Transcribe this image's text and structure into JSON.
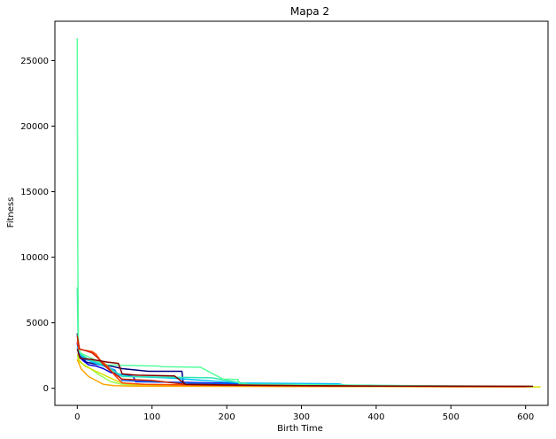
{
  "chart_data": {
    "type": "line",
    "title": "Mapa 2",
    "xlabel": "Birth Time",
    "ylabel": "Fitness",
    "xlim": [
      -30,
      630
    ],
    "ylim": [
      -1300,
      28000
    ],
    "xticks": [
      0,
      100,
      200,
      300,
      400,
      500,
      600
    ],
    "yticks": [
      0,
      5000,
      10000,
      15000,
      20000,
      25000
    ],
    "grid": false,
    "legend": "none",
    "series": [
      {
        "color": "#000080",
        "x": [
          0,
          2,
          5,
          12,
          20,
          30,
          45,
          60,
          95,
          140,
          142,
          200,
          260,
          380,
          500,
          605
        ],
        "y": [
          4200,
          2800,
          2400,
          2000,
          1900,
          1800,
          1700,
          1500,
          1300,
          1300,
          280,
          250,
          200,
          150,
          140,
          130
        ]
      },
      {
        "color": "#0000dd",
        "x": [
          0,
          2,
          8,
          15,
          25,
          35,
          45,
          75,
          78,
          150,
          230,
          300,
          400,
          500,
          600
        ],
        "y": [
          3500,
          2400,
          2100,
          1800,
          1700,
          1500,
          1200,
          900,
          500,
          450,
          350,
          300,
          200,
          150,
          140
        ]
      },
      {
        "color": "#0060ff",
        "x": [
          0,
          3,
          10,
          20,
          30,
          40,
          50,
          60,
          100,
          150,
          220,
          300,
          400,
          500,
          600
        ],
        "y": [
          3000,
          2500,
          2200,
          2100,
          1900,
          1600,
          1400,
          600,
          500,
          400,
          300,
          250,
          200,
          150,
          140
        ]
      },
      {
        "color": "#00c0ff",
        "x": [
          0,
          3,
          10,
          20,
          30,
          45,
          55,
          70,
          120,
          220,
          350,
          360,
          450,
          560,
          605
        ],
        "y": [
          3200,
          2600,
          2300,
          2000,
          1800,
          1500,
          1100,
          900,
          800,
          400,
          350,
          200,
          180,
          160,
          150
        ]
      },
      {
        "color": "#2ee6b0",
        "x": [
          0,
          1,
          2,
          5,
          15,
          25,
          35,
          60,
          180,
          230,
          350,
          450,
          550,
          610
        ],
        "y": [
          7700,
          3800,
          3000,
          2600,
          2200,
          2000,
          1800,
          900,
          800,
          300,
          250,
          200,
          170,
          160
        ]
      },
      {
        "color": "#55ff9a",
        "x": [
          0,
          0.5,
          1.5,
          4,
          15,
          30,
          40,
          60,
          110,
          112,
          165,
          195,
          215,
          217,
          300,
          400,
          500,
          605
        ],
        "y": [
          26700,
          12000,
          3200,
          2700,
          2400,
          2000,
          1800,
          1750,
          1700,
          1650,
          1600,
          700,
          680,
          300,
          280,
          200,
          180,
          170
        ]
      },
      {
        "color": "#9aff5a",
        "x": [
          0,
          3,
          15,
          30,
          45,
          60,
          80,
          120,
          200,
          300,
          400,
          500,
          600
        ],
        "y": [
          2400,
          2000,
          1600,
          1000,
          500,
          300,
          250,
          200,
          180,
          160,
          140,
          130,
          120
        ]
      },
      {
        "color": "#d8e000",
        "x": [
          0,
          3,
          10,
          25,
          40,
          55,
          70,
          90,
          150,
          250,
          350,
          450,
          550,
          610,
          620
        ],
        "y": [
          2600,
          2100,
          1700,
          1300,
          900,
          500,
          300,
          250,
          200,
          160,
          140,
          130,
          120,
          110,
          100
        ]
      },
      {
        "color": "#ffa500",
        "x": [
          0,
          5,
          15,
          25,
          35,
          50,
          70,
          100,
          200,
          300,
          400,
          500,
          600
        ],
        "y": [
          2200,
          1500,
          900,
          600,
          300,
          200,
          180,
          160,
          150,
          140,
          130,
          120,
          110
        ]
      },
      {
        "color": "#ff4500",
        "x": [
          0,
          2,
          10,
          20,
          25,
          30,
          40,
          50,
          60,
          90,
          150,
          250,
          350,
          450,
          550,
          600
        ],
        "y": [
          3600,
          3000,
          2900,
          2800,
          2600,
          2200,
          1700,
          1000,
          400,
          300,
          250,
          200,
          180,
          160,
          150,
          140
        ]
      },
      {
        "color": "#cc2200",
        "x": [
          0,
          3,
          10,
          20,
          28,
          35,
          45,
          60,
          100,
          145,
          220,
          300,
          380,
          500,
          605
        ],
        "y": [
          4000,
          3000,
          2900,
          2700,
          2300,
          1800,
          1300,
          700,
          600,
          300,
          250,
          200,
          180,
          160,
          150
        ]
      },
      {
        "color": "#800000",
        "x": [
          0,
          4,
          20,
          40,
          55,
          60,
          80,
          130,
          145,
          200,
          260,
          380,
          500,
          610
        ],
        "y": [
          3000,
          2300,
          2200,
          2000,
          1900,
          1100,
          1000,
          950,
          300,
          250,
          220,
          180,
          160,
          150
        ]
      }
    ]
  }
}
